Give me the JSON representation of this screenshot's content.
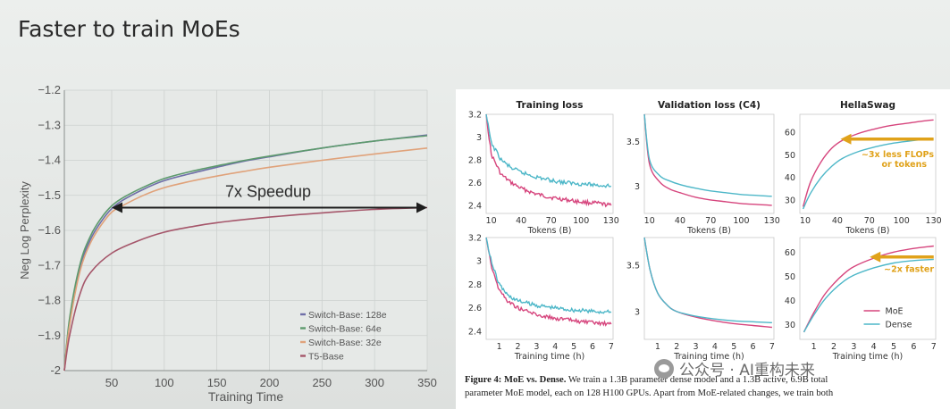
{
  "slide": {
    "title": "Faster to train MoEs"
  },
  "chart_data": [
    {
      "id": "main",
      "type": "line",
      "title": "",
      "xlabel": "Training Time",
      "ylabel": "Neg Log Perplexity",
      "xlim": [
        5,
        350
      ],
      "ylim": [
        -2.0,
        -1.2
      ],
      "xticks": [
        50,
        100,
        150,
        200,
        250,
        300,
        350
      ],
      "yticks": [
        -2.0,
        -1.9,
        -1.8,
        -1.7,
        -1.6,
        -1.5,
        -1.4,
        -1.3,
        -1.2
      ],
      "grid": true,
      "legend_position": "bottom-right",
      "annotation": {
        "text": "7x Speedup",
        "from": [
          50,
          -1.535
        ],
        "to": [
          350,
          -1.535
        ]
      },
      "series": [
        {
          "name": "Switch-Base: 128e",
          "color": "#6f6fa8",
          "x": [
            5,
            10,
            20,
            30,
            40,
            50,
            60,
            80,
            100,
            125,
            150,
            175,
            200,
            250,
            300,
            350
          ],
          "y": [
            -2.0,
            -1.86,
            -1.705,
            -1.625,
            -1.575,
            -1.538,
            -1.515,
            -1.483,
            -1.458,
            -1.438,
            -1.42,
            -1.403,
            -1.39,
            -1.365,
            -1.345,
            -1.328
          ]
        },
        {
          "name": "Switch-Base: 64e",
          "color": "#5d9a6d",
          "x": [
            5,
            10,
            20,
            30,
            40,
            50,
            60,
            80,
            100,
            125,
            150,
            175,
            200,
            250,
            300,
            350
          ],
          "y": [
            -2.0,
            -1.85,
            -1.695,
            -1.615,
            -1.565,
            -1.53,
            -1.508,
            -1.477,
            -1.452,
            -1.432,
            -1.416,
            -1.401,
            -1.388,
            -1.365,
            -1.345,
            -1.33
          ]
        },
        {
          "name": "Switch-Base: 32e",
          "color": "#e0a27a",
          "x": [
            5,
            10,
            20,
            30,
            40,
            50,
            60,
            80,
            100,
            125,
            150,
            175,
            200,
            250,
            300,
            350
          ],
          "y": [
            -2.0,
            -1.87,
            -1.715,
            -1.635,
            -1.585,
            -1.548,
            -1.53,
            -1.5,
            -1.478,
            -1.46,
            -1.445,
            -1.432,
            -1.42,
            -1.4,
            -1.382,
            -1.365
          ]
        },
        {
          "name": "T5-Base",
          "color": "#a5566a",
          "x": [
            5,
            10,
            20,
            30,
            50,
            75,
            100,
            125,
            150,
            200,
            250,
            300,
            350
          ],
          "y": [
            -2.0,
            -1.9,
            -1.78,
            -1.72,
            -1.665,
            -1.63,
            -1.605,
            -1.59,
            -1.578,
            -1.562,
            -1.55,
            -1.54,
            -1.535
          ]
        }
      ]
    },
    {
      "id": "training-loss-tokens",
      "type": "line",
      "title": "Training loss",
      "xlabel": "Tokens (B)",
      "ylabel": "",
      "xlim": [
        5,
        132
      ],
      "ylim": [
        2.33,
        3.2
      ],
      "xticks": [
        10,
        40,
        70,
        100,
        130
      ],
      "yticks": [
        2.4,
        2.6,
        2.8,
        3.0,
        3.2
      ],
      "series": [
        {
          "name": "MoE",
          "x": [
            5,
            10,
            20,
            30,
            40,
            55,
            70,
            85,
            100,
            115,
            130
          ],
          "y": [
            3.2,
            2.85,
            2.67,
            2.6,
            2.55,
            2.5,
            2.47,
            2.45,
            2.43,
            2.42,
            2.4
          ]
        },
        {
          "name": "Dense",
          "x": [
            5,
            10,
            20,
            30,
            40,
            55,
            70,
            85,
            100,
            115,
            130
          ],
          "y": [
            3.2,
            2.95,
            2.8,
            2.73,
            2.69,
            2.65,
            2.62,
            2.6,
            2.59,
            2.58,
            2.57
          ]
        }
      ]
    },
    {
      "id": "validation-loss-tokens",
      "type": "line",
      "title": "Validation loss (C4)",
      "xlabel": "Tokens (B)",
      "ylabel": "",
      "xlim": [
        5,
        132
      ],
      "ylim": [
        2.7,
        3.8
      ],
      "xticks": [
        10,
        40,
        70,
        100,
        130
      ],
      "yticks": [
        3.0,
        3.5
      ],
      "series": [
        {
          "name": "MoE",
          "x": [
            5,
            10,
            20,
            30,
            40,
            55,
            70,
            85,
            100,
            115,
            130
          ],
          "y": [
            3.8,
            3.25,
            3.05,
            2.97,
            2.93,
            2.88,
            2.85,
            2.83,
            2.81,
            2.8,
            2.79
          ]
        },
        {
          "name": "Dense",
          "x": [
            5,
            10,
            20,
            30,
            40,
            55,
            70,
            85,
            100,
            115,
            130
          ],
          "y": [
            3.8,
            3.3,
            3.12,
            3.06,
            3.02,
            2.98,
            2.95,
            2.93,
            2.91,
            2.9,
            2.89
          ]
        }
      ]
    },
    {
      "id": "hellaswag-tokens",
      "type": "line",
      "title": "HellaSwag",
      "xlabel": "Tokens (B)",
      "ylabel": "",
      "xlim": [
        5,
        132
      ],
      "ylim": [
        24,
        68
      ],
      "xticks": [
        10,
        40,
        70,
        100,
        130
      ],
      "yticks": [
        30,
        40,
        50,
        60
      ],
      "annotation": {
        "text": "~3x less FLOPs or tokens",
        "arrow_from": [
          130,
          57
        ],
        "arrow_to": [
          43,
          57
        ]
      },
      "series": [
        {
          "name": "MoE",
          "x": [
            8,
            15,
            25,
            35,
            45,
            60,
            75,
            90,
            105,
            120,
            130
          ],
          "y": [
            27,
            38,
            47,
            53,
            56.5,
            59.5,
            61.5,
            63,
            64,
            65,
            65.5
          ]
        },
        {
          "name": "Dense",
          "x": [
            8,
            15,
            25,
            35,
            45,
            60,
            75,
            90,
            105,
            120,
            130
          ],
          "y": [
            26,
            33,
            40,
            45,
            48.5,
            51.5,
            53.5,
            55,
            56,
            56.8,
            57
          ]
        }
      ]
    },
    {
      "id": "training-loss-time",
      "type": "line",
      "title": "",
      "xlabel": "Training time (h)",
      "ylabel": "",
      "xlim": [
        0.3,
        7.1
      ],
      "ylim": [
        2.33,
        3.2
      ],
      "xticks": [
        1,
        2,
        3,
        4,
        5,
        6,
        7
      ],
      "yticks": [
        2.4,
        2.6,
        2.8,
        3.0,
        3.2
      ],
      "series": [
        {
          "name": "MoE",
          "x": [
            0.3,
            0.6,
            1,
            1.5,
            2,
            3,
            4,
            5,
            6,
            7
          ],
          "y": [
            3.2,
            2.95,
            2.75,
            2.65,
            2.6,
            2.54,
            2.51,
            2.49,
            2.47,
            2.46
          ]
        },
        {
          "name": "Dense",
          "x": [
            0.3,
            0.6,
            1,
            1.5,
            2,
            3,
            4,
            5,
            6,
            7
          ],
          "y": [
            3.2,
            2.98,
            2.8,
            2.7,
            2.66,
            2.62,
            2.6,
            2.58,
            2.57,
            2.56
          ]
        }
      ]
    },
    {
      "id": "validation-loss-time",
      "type": "line",
      "title": "",
      "xlabel": "Training time (h)",
      "ylabel": "",
      "xlim": [
        0.3,
        7.1
      ],
      "ylim": [
        2.7,
        3.8
      ],
      "xticks": [
        1,
        2,
        3,
        4,
        5,
        6,
        7
      ],
      "yticks": [
        3.0,
        3.5
      ],
      "series": [
        {
          "name": "MoE",
          "x": [
            0.3,
            0.6,
            1,
            1.5,
            2,
            3,
            4,
            5,
            6,
            7
          ],
          "y": [
            3.8,
            3.45,
            3.2,
            3.07,
            3.0,
            2.94,
            2.9,
            2.87,
            2.85,
            2.83
          ]
        },
        {
          "name": "Dense",
          "x": [
            0.3,
            0.6,
            1,
            1.5,
            2,
            3,
            4,
            5,
            6,
            7
          ],
          "y": [
            3.8,
            3.45,
            3.2,
            3.07,
            3.0,
            2.95,
            2.92,
            2.9,
            2.89,
            2.88
          ]
        }
      ]
    },
    {
      "id": "hellaswag-time",
      "type": "line",
      "title": "",
      "xlabel": "Training time (h)",
      "ylabel": "",
      "xlim": [
        0.3,
        7.1
      ],
      "ylim": [
        24,
        66
      ],
      "xticks": [
        1,
        2,
        3,
        4,
        5,
        6,
        7
      ],
      "yticks": [
        30,
        40,
        50,
        60
      ],
      "annotation": {
        "text": "~2x faster",
        "arrow_from": [
          7,
          58
        ],
        "arrow_to": [
          3.8,
          58
        ]
      },
      "legend": [
        "MoE",
        "Dense"
      ],
      "series": [
        {
          "name": "MoE",
          "x": [
            0.5,
            1,
            1.5,
            2,
            2.5,
            3,
            4,
            5,
            6,
            7
          ],
          "y": [
            27,
            35,
            42,
            47,
            51,
            54,
            57.5,
            60,
            61.5,
            62.5
          ]
        },
        {
          "name": "Dense",
          "x": [
            0.5,
            1,
            1.5,
            2,
            2.5,
            3,
            4,
            5,
            6,
            7
          ],
          "y": [
            27,
            34,
            40,
            44.5,
            48,
            50.5,
            53.5,
            55.5,
            56.5,
            57
          ]
        }
      ]
    }
  ],
  "paper": {
    "colors": {
      "moe": "#d6457d",
      "dense": "#4db7c8",
      "arrow": "#e0a21a"
    },
    "caption_label": "Figure 4:",
    "caption_bold": "MoE vs. Dense.",
    "caption_line1_rest": "We train a 1.3B parameter dense model and a 1.3B active, 6.9B total",
    "caption_line2": "parameter MoE model, each on 128 H100 GPUs. Apart from MoE-related changes, we train both"
  },
  "watermark": {
    "text": "公众号 · AI重构未来"
  }
}
